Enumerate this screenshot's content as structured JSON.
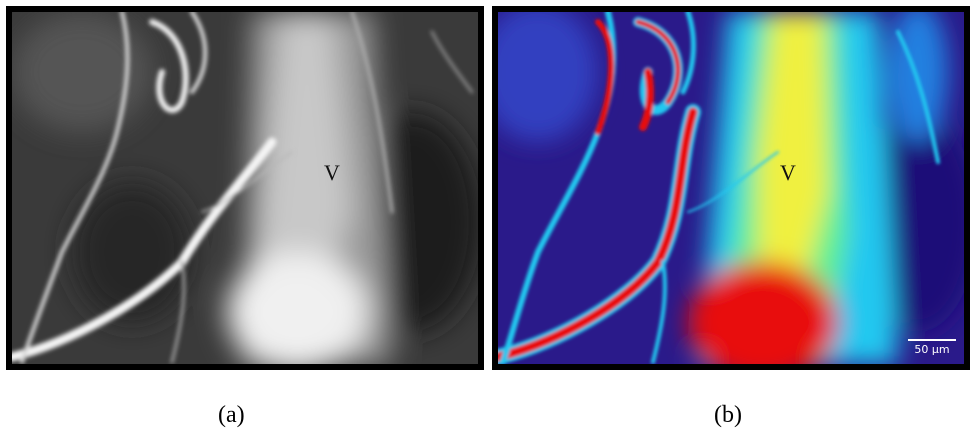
{
  "panels": {
    "a": {
      "vessel_label": "V",
      "caption": "(a)",
      "colors": {
        "background": "#3a3a3a",
        "bright": "#f4f4f4",
        "mid": "#9a9a9a",
        "dark": "#1e1e1e"
      }
    },
    "b": {
      "vessel_label": "V",
      "caption": "(b)",
      "scale_bar": "50 µm",
      "colors": {
        "background": "#2a1a8a",
        "cyan": "#20c8f0",
        "yellow": "#f0f040",
        "red": "#e81010",
        "green": "#60f090"
      }
    }
  }
}
